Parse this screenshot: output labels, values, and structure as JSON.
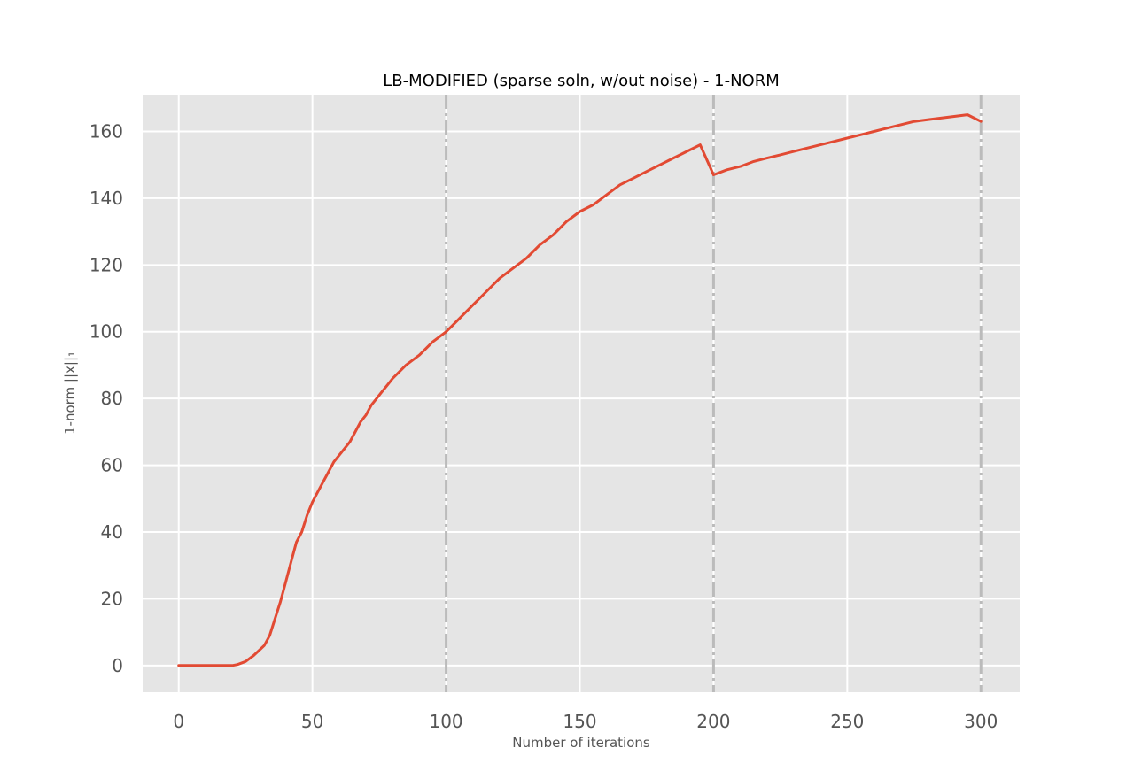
{
  "chart_data": {
    "type": "line",
    "title": "LB-MODIFIED (sparse soln, w/out noise) - 1-NORM",
    "xlabel": "Number of iterations",
    "ylabel": "1-norm ||x||₁",
    "xlim": [
      -13.5,
      314.5
    ],
    "ylim": [
      -8,
      171
    ],
    "xticks": [
      0,
      50,
      100,
      150,
      200,
      250,
      300
    ],
    "yticks": [
      0,
      20,
      40,
      60,
      80,
      100,
      120,
      140,
      160
    ],
    "grid": true,
    "vlines": [
      100,
      200,
      300
    ],
    "series": [
      {
        "color": "#E24A33",
        "x": [
          0,
          5,
          10,
          15,
          20,
          22,
          25,
          28,
          30,
          32,
          34,
          36,
          38,
          40,
          42,
          44,
          46,
          48,
          50,
          52,
          54,
          56,
          58,
          60,
          62,
          64,
          66,
          68,
          70,
          72,
          74,
          76,
          78,
          80,
          85,
          90,
          95,
          100,
          105,
          110,
          115,
          120,
          125,
          130,
          135,
          140,
          145,
          150,
          155,
          160,
          165,
          170,
          175,
          180,
          185,
          190,
          195,
          200,
          205,
          210,
          215,
          220,
          225,
          230,
          235,
          240,
          245,
          250,
          255,
          260,
          265,
          270,
          275,
          280,
          285,
          290,
          295,
          300
        ],
        "y": [
          0,
          0,
          0,
          0,
          0,
          0.3,
          1.2,
          3,
          4.5,
          6,
          9,
          14,
          19,
          25,
          31,
          37,
          40,
          45,
          49,
          52,
          55,
          58,
          61,
          63,
          65,
          67,
          70,
          73,
          75,
          78,
          80,
          82,
          84,
          86,
          90,
          93,
          97,
          100,
          104,
          108,
          112,
          116,
          119,
          122,
          126,
          129,
          133,
          136,
          138,
          141,
          144,
          146,
          148,
          150,
          152,
          154,
          156,
          147,
          148.5,
          149.5,
          151,
          152,
          153,
          154,
          155,
          156,
          157,
          158,
          159,
          160,
          161,
          162,
          163,
          163.5,
          164,
          164.5,
          165,
          163
        ]
      }
    ]
  }
}
